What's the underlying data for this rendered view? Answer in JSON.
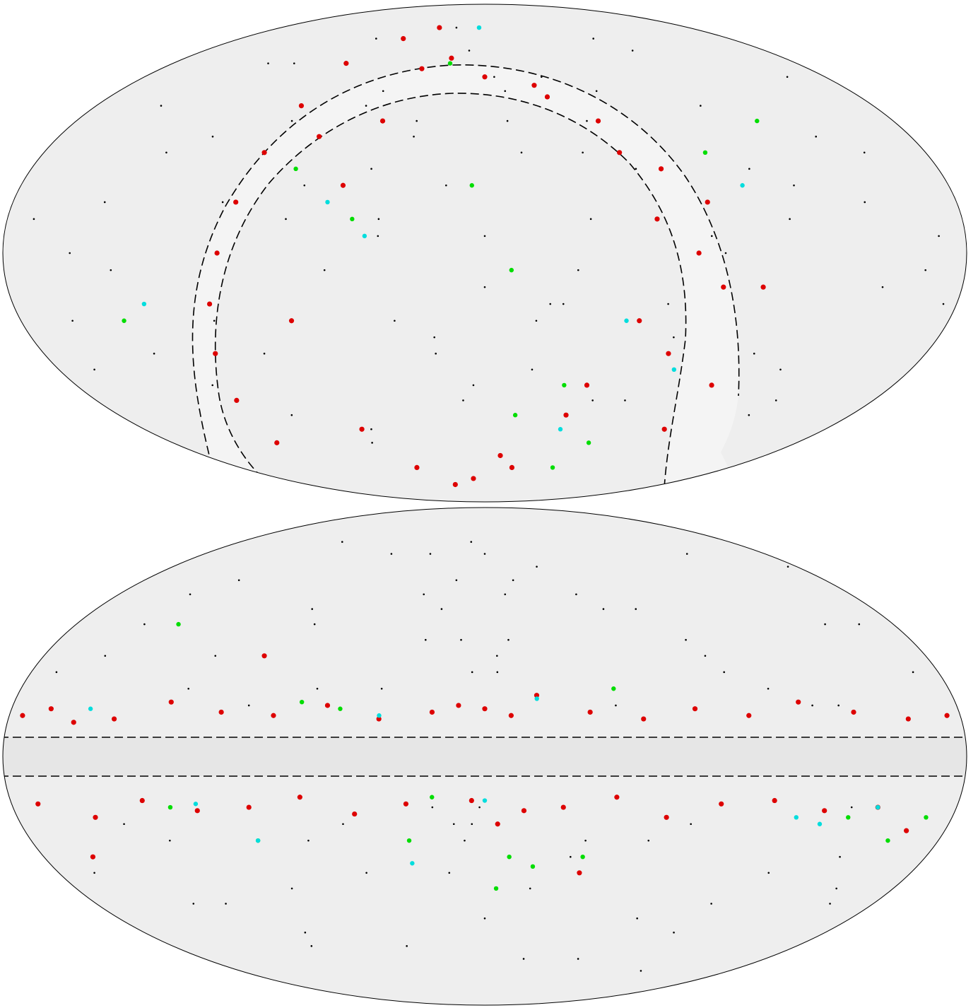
{
  "chart_data": [
    {
      "type": "mollweide-scatter",
      "xlim": [
        -180,
        180
      ],
      "ylim": [
        -90,
        90
      ],
      "series": [
        {
          "color": "#000000",
          "size": 1.3,
          "x": [
            -170,
            -160,
            -150,
            -140,
            -130,
            -120,
            -110,
            -100,
            -90,
            -80,
            -70,
            -60,
            -50,
            -40,
            -30,
            -20,
            -10,
            0,
            10,
            20,
            30,
            40,
            50,
            60,
            70,
            80,
            90,
            100,
            110,
            120,
            130,
            140,
            150,
            160,
            170,
            -165,
            -145,
            -125,
            -105,
            -85,
            -65,
            -45,
            -25,
            -5,
            15,
            35,
            55,
            75,
            95,
            115,
            135,
            155,
            175,
            -155,
            -135,
            -115,
            -95,
            -75,
            -55,
            -35,
            -15,
            5,
            25,
            45,
            65,
            85,
            105,
            125,
            145,
            165,
            -60,
            -40,
            -20,
            0,
            20,
            40,
            -30,
            -10,
            10,
            30
          ],
          "y": [
            10,
            -20,
            45,
            -5,
            30,
            -40,
            60,
            15,
            -30,
            70,
            20,
            -55,
            50,
            5,
            35,
            -25,
            65,
            -10,
            40,
            -35,
            55,
            10,
            -45,
            25,
            -15,
            70,
            0,
            45,
            -30,
            20,
            -50,
            35,
            -10,
            55,
            5,
            -35,
            15,
            60,
            -20,
            40,
            -60,
            25,
            75,
            -40,
            30,
            -5,
            50,
            -25,
            65,
            10,
            -45,
            30,
            -15,
            0,
            -30,
            35,
            -50,
            10,
            45,
            -20,
            20,
            55,
            -15,
            40,
            -45,
            5,
            25,
            -35,
            15,
            -5,
            -5,
            10,
            -30,
            5,
            -20,
            30,
            40,
            -45,
            50,
            -15
          ]
        },
        {
          "color": "#dd0000",
          "size": 3.6,
          "x": [
            -120,
            -115,
            -110,
            -105,
            -100,
            -95,
            -90,
            -85,
            -80,
            -60,
            -50,
            -40,
            -30,
            -20,
            -10,
            0,
            20,
            30,
            40,
            50,
            60,
            70,
            80,
            90,
            100,
            -70,
            -65,
            -75,
            -55,
            10,
            45,
            55,
            65,
            75,
            85,
            95,
            105,
            -45,
            -35,
            25
          ],
          "y": [
            -60,
            -45,
            -30,
            -15,
            0,
            15,
            30,
            45,
            60,
            70,
            -70,
            75,
            -78,
            62,
            -75,
            55,
            -70,
            48,
            -50,
            40,
            -20,
            25,
            0,
            -10,
            -40,
            35,
            -55,
            -20,
            20,
            -65,
            -40,
            30,
            10,
            -30,
            15,
            -55,
            -10,
            40,
            58,
            52
          ]
        },
        {
          "color": "#00dd00",
          "size": 3.2,
          "x": [
            -140,
            -75,
            -50,
            -20,
            10,
            35,
            60,
            90,
            120,
            -5,
            15,
            50
          ],
          "y": [
            -20,
            25,
            10,
            60,
            -5,
            -40,
            -60,
            30,
            40,
            20,
            -50,
            -70
          ]
        },
        {
          "color": "#00dddd",
          "size": 3.2,
          "x": [
            -130,
            -60,
            -45,
            40,
            55,
            80,
            100,
            -5
          ],
          "y": [
            -15,
            15,
            5,
            -55,
            -20,
            -35,
            20,
            75
          ]
        }
      ]
    },
    {
      "type": "mollweide-scatter",
      "xlim": [
        -180,
        180
      ],
      "ylim": [
        -90,
        90
      ],
      "series": [
        {
          "color": "#000000",
          "size": 1.3,
          "x": [
            -170,
            -160,
            -150,
            -140,
            -130,
            -120,
            -110,
            -100,
            -90,
            -80,
            -70,
            -60,
            -50,
            -40,
            -30,
            -20,
            -10,
            0,
            10,
            20,
            30,
            40,
            50,
            60,
            70,
            80,
            90,
            100,
            110,
            120,
            130,
            140,
            150,
            160,
            170,
            -165,
            -145,
            -125,
            -105,
            -85,
            -65,
            -45,
            -25,
            -5,
            15,
            35,
            55,
            75,
            95,
            115,
            135,
            155,
            175,
            -155,
            -135,
            -115,
            -95,
            -75,
            -55,
            -35,
            -15,
            5,
            25,
            45,
            65,
            85,
            105,
            125,
            145,
            165,
            -20,
            -15,
            -10,
            -5,
            0,
            5,
            10,
            -12,
            -8,
            -2
          ],
          "y": [
            25,
            -30,
            40,
            -20,
            55,
            -45,
            30,
            -60,
            15,
            45,
            -25,
            65,
            -35,
            20,
            50,
            -15,
            70,
            -50,
            35,
            -40,
            60,
            -25,
            15,
            -65,
            45,
            -20,
            30,
            -55,
            20,
            -35,
            65,
            -15,
            40,
            -45,
            25,
            -35,
            50,
            -25,
            70,
            -40,
            20,
            -60,
            35,
            -20,
            55,
            -30,
            45,
            -50,
            25,
            -70,
            15,
            -40,
            60,
            30,
            -45,
            20,
            -55,
            40,
            -20,
            65,
            -35,
            25,
            -65,
            50,
            -25,
            35,
            -45,
            15,
            -30,
            40,
            45,
            55,
            35,
            25,
            65,
            30,
            50,
            -20,
            -25,
            -15
          ]
        },
        {
          "color": "#dd0000",
          "size": 3.6,
          "x": [
            -175,
            -165,
            -155,
            -140,
            -120,
            -100,
            -80,
            -60,
            -40,
            -20,
            -10,
            0,
            10,
            20,
            40,
            60,
            80,
            100,
            120,
            140,
            160,
            175,
            -170,
            -150,
            -130,
            -110,
            -90,
            -70,
            -50,
            -30,
            -5,
            5,
            15,
            30,
            50,
            70,
            90,
            110,
            130,
            150,
            165,
            -160,
            -90,
            40
          ],
          "y": [
            12,
            14,
            10,
            11,
            16,
            13,
            12,
            15,
            11,
            13,
            15,
            14,
            12,
            18,
            13,
            11,
            14,
            12,
            16,
            13,
            11,
            12,
            -14,
            -18,
            -13,
            -16,
            -15,
            -12,
            -17,
            -14,
            -13,
            -20,
            -16,
            -15,
            -12,
            -18,
            -14,
            -13,
            -16,
            -15,
            -22,
            -30,
            30,
            -35
          ]
        },
        {
          "color": "#00dd00",
          "size": 3.2,
          "x": [
            -135,
            -70,
            -55,
            -20,
            10,
            50,
            140,
            -120,
            -90,
            -30,
            5,
            20,
            40,
            160,
            170
          ],
          "y": [
            40,
            16,
            14,
            -12,
            -30,
            20,
            -18,
            -15,
            -25,
            -25,
            -40,
            -33,
            -30,
            -25,
            -18
          ]
        },
        {
          "color": "#00dddd",
          "size": 3.2,
          "x": [
            -150,
            -110,
            -90,
            -30,
            0,
            20,
            120,
            130,
            150,
            -40
          ],
          "y": [
            14,
            -14,
            -25,
            -32,
            -13,
            17,
            -18,
            -20,
            -15,
            12
          ]
        }
      ]
    }
  ]
}
